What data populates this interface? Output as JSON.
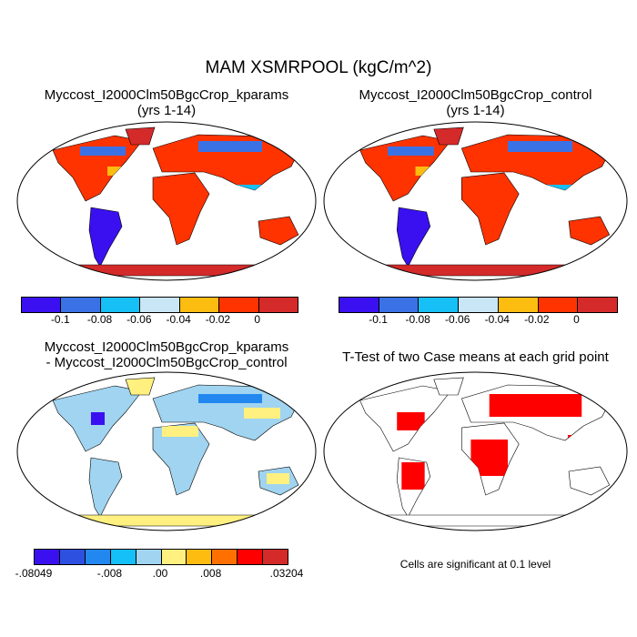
{
  "title": "MAM XSMRPOOL (kgC/m^2)",
  "panels": [
    {
      "title": "Myccost_I2000Clm50BgcCrop_kparams",
      "subtitle": "(yrs 1-14)"
    },
    {
      "title": "Myccost_I2000Clm50BgcCrop_control",
      "subtitle": "(yrs 1-14)"
    },
    {
      "title": "Myccost_I2000Clm50BgcCrop_kparams",
      "subtitle": "- Myccost_I2000Clm50BgcCrop_control"
    },
    {
      "title": "T-Test of two Case means at each grid point"
    }
  ],
  "colorbar_top": {
    "colors": [
      "#3a10f0",
      "#3a72e6",
      "#16bff5",
      "#c8e6f5",
      "#fdbc10",
      "#ff3300",
      "#d42a2a"
    ],
    "labels": [
      "-0.1",
      "-0.08",
      "-0.06",
      "-0.04",
      "-0.02",
      "0"
    ]
  },
  "colorbar_diff": {
    "colors": [
      "#3a10f0",
      "#2e50e0",
      "#2288f0",
      "#15c0f8",
      "#a0d4f0",
      "#fff080",
      "#ffbc10",
      "#ff7000",
      "#ff0000",
      "#d42a2a"
    ],
    "labels": [
      "-.08049",
      "-.008",
      ".00",
      ".008",
      ".03204"
    ]
  },
  "ttest_note": "Cells are significant at 0.1 level"
}
